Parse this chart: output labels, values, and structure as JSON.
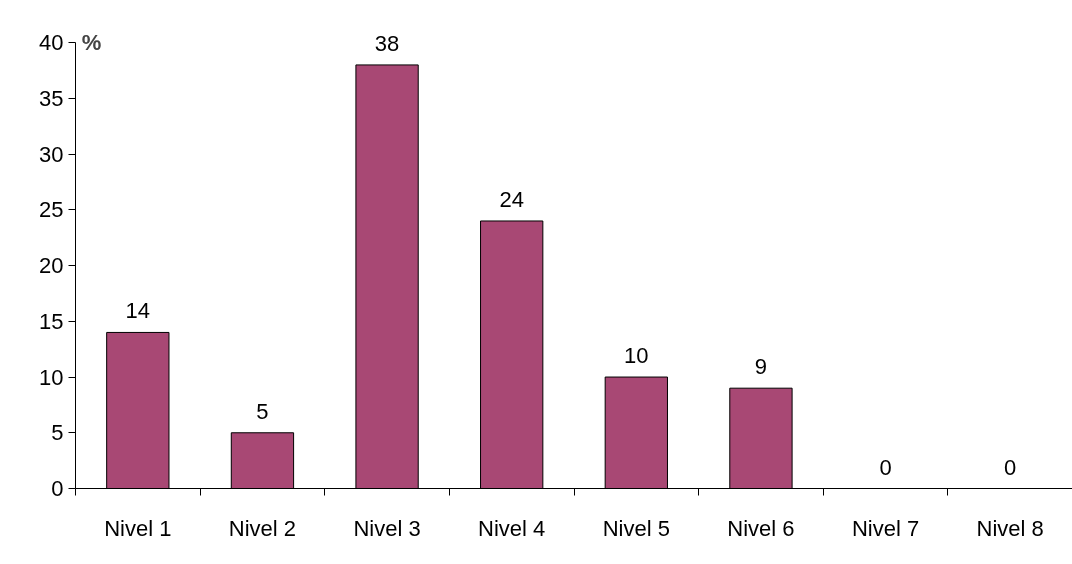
{
  "chart_data": {
    "type": "bar",
    "ylabel": "%",
    "categories": [
      "Nivel 1",
      "Nivel 2",
      "Nivel 3",
      "Nivel 4",
      "Nivel 5",
      "Nivel 6",
      "Nivel 7",
      "Nivel 8"
    ],
    "values": [
      14,
      5,
      38,
      24,
      10,
      9,
      0,
      0
    ],
    "color": "#a84874",
    "ylim": [
      0,
      40
    ],
    "yticks": [
      0,
      5,
      10,
      15,
      20,
      25,
      30,
      35,
      40
    ],
    "data_labels": true,
    "grid": false
  }
}
